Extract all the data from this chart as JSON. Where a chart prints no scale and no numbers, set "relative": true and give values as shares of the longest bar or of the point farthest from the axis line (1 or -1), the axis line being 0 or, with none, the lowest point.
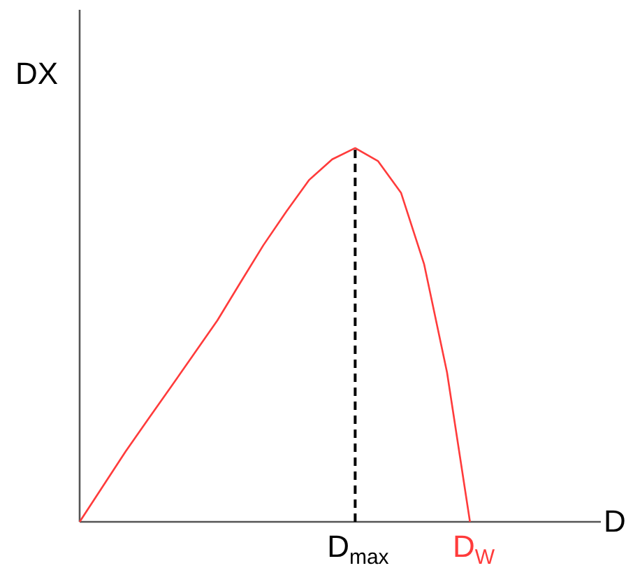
{
  "chart_data": {
    "type": "line",
    "xlabel": "D",
    "ylabel": "DX",
    "relative": true,
    "categories": [
      null,
      null,
      null,
      null,
      null,
      null,
      null,
      null,
      null,
      null,
      null,
      null,
      "D$_{max}$",
      null,
      null,
      null,
      null,
      "D$_{W}$",
      null,
      null,
      null,
      null,
      null
    ],
    "series": [
      {
        "color": "#ff3b3b",
        "values": [
          0,
          0.094,
          0.188,
          0.276,
          0.363,
          0.451,
          0.539,
          0.64,
          0.74,
          0.83,
          0.915,
          0.97,
          1.0,
          0.965,
          0.88,
          0.69,
          0.4,
          0,
          null,
          null,
          null,
          null,
          null
        ]
      }
    ],
    "ref_lines": [
      {
        "axis": "x",
        "value": "D$_{max}$",
        "color": "#000000",
        "line_style": "dashed"
      }
    ]
  }
}
